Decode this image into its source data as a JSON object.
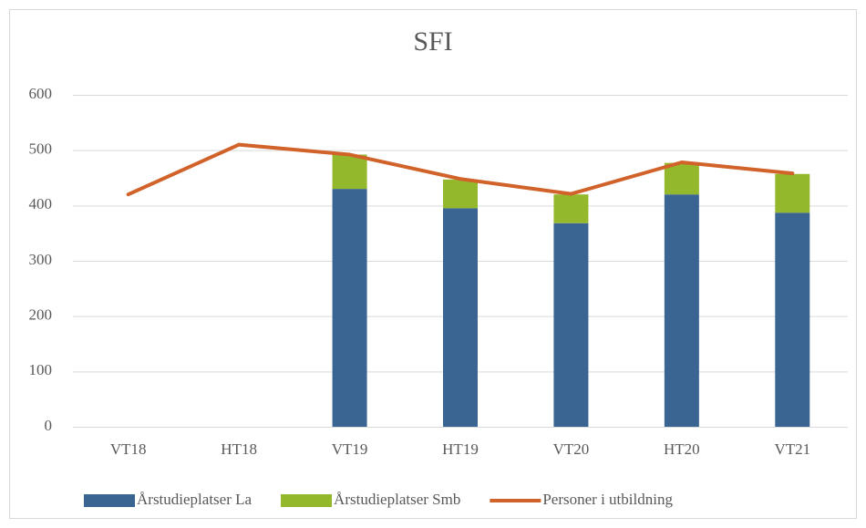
{
  "chart_data": {
    "type": "bar",
    "title": "SFI",
    "categories": [
      "VT18",
      "HT18",
      "VT19",
      "HT19",
      "VT20",
      "HT20",
      "VT21"
    ],
    "series": [
      {
        "name": "Årstudieplatser La",
        "type": "bar",
        "color": "#3a6592",
        "values": [
          null,
          null,
          430,
          395,
          368,
          420,
          387
        ]
      },
      {
        "name": "Årstudieplatser Smb",
        "type": "bar",
        "color": "#94b82c",
        "values": [
          null,
          null,
          62,
          52,
          52,
          57,
          70
        ]
      },
      {
        "name": "Personer i utbildning",
        "type": "line",
        "color": "#d0622a",
        "values": [
          420,
          510,
          492,
          448,
          421,
          478,
          458
        ]
      }
    ],
    "stacked": true,
    "ylim": [
      0,
      600
    ],
    "yticks": [
      0,
      100,
      200,
      300,
      400,
      500,
      600
    ],
    "grid": true,
    "legend": "bottom"
  }
}
